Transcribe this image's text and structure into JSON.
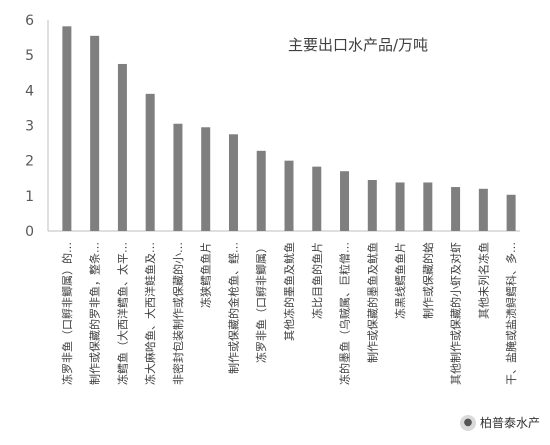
{
  "chart_data": {
    "type": "bar",
    "title": "主要出口水产品/万吨",
    "ylim": [
      0,
      6
    ],
    "yticks": [
      0,
      1,
      2,
      3,
      4,
      5,
      6
    ],
    "grid": false,
    "bar_color": "#7f7f7f",
    "categories": [
      "冻罗非鱼（口孵非鲫属）的…",
      "制作或保藏的罗非鱼，整条…",
      "冻鳕鱼（大西洋鳕鱼、太平…",
      "冻大麻哈鱼、大西洋鲑鱼及…",
      "非密封包装制作或保藏的小…",
      "冻狭鳕鱼鱼片",
      "制作或保藏的金枪鱼、鲣…",
      "冻罗非鱼（口孵非鲫属）",
      "其他冻的墨鱼及鱿鱼",
      "冻比目鱼的鱼片",
      "冻的墨鱼（乌贼属、巨粒僧…",
      "制作或保藏的墨鱼及鱿鱼",
      "冻黑线鳕鱼鱼片",
      "制作或保藏的蛤",
      "其他制作或保藏的小虾及对虾",
      "其他未列名冻鱼",
      "干、盐腌或盐渍鲟鳕科、多…"
    ],
    "values": [
      5.82,
      5.55,
      4.75,
      3.9,
      3.05,
      2.95,
      2.75,
      2.28,
      2.0,
      1.83,
      1.7,
      1.45,
      1.38,
      1.38,
      1.25,
      1.2,
      1.03
    ]
  },
  "watermark": {
    "icon": "wechat-icon",
    "text": "柏普泰水产"
  }
}
